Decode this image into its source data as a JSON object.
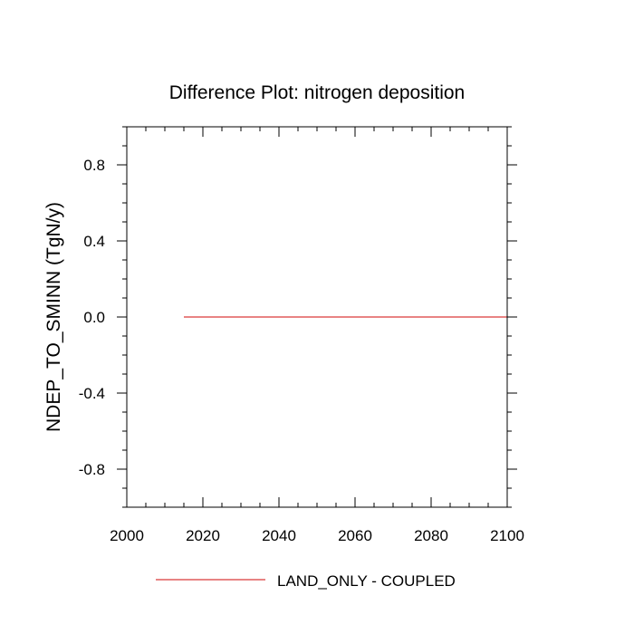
{
  "chart_data": {
    "type": "line",
    "title": "Difference Plot: nitrogen deposition",
    "xlabel": "",
    "ylabel": "NDEP_TO_SMINN  (TgN/y)",
    "xlim": [
      2000,
      2100
    ],
    "ylim": [
      -1,
      1
    ],
    "xticks": [
      2000,
      2020,
      2040,
      2060,
      2080,
      2100
    ],
    "xtick_labels": [
      "2000",
      "2020",
      "2040",
      "2060",
      "2080",
      "2100"
    ],
    "yticks": [
      -0.8,
      -0.4,
      0.0,
      0.4,
      0.8
    ],
    "ytick_labels": [
      "-0.8",
      "-0.4",
      "0.0",
      "0.4",
      "0.8"
    ],
    "grid": false,
    "legend_position": "bottom-center",
    "series": [
      {
        "name": "LAND_ONLY - COUPLED",
        "color": "#e05a5a",
        "x": [
          2015,
          2100
        ],
        "y": [
          0.0,
          0.0
        ]
      }
    ]
  }
}
